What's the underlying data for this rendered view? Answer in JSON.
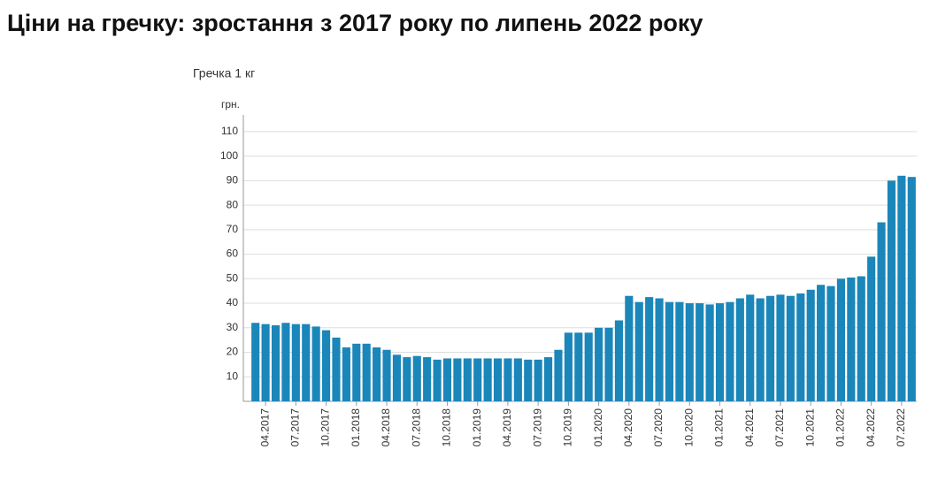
{
  "chart_data": {
    "type": "bar",
    "title": "Ціни на гречку: зростання з 2017 року по липень 2022 року",
    "subtitle": "Гречка 1 кг",
    "y_label": "грн.",
    "categories": [
      null,
      "04.2017",
      null,
      null,
      "07.2017",
      null,
      null,
      "10.2017",
      null,
      null,
      "01.2018",
      null,
      null,
      "04.2018",
      null,
      null,
      "07.2018",
      null,
      null,
      "10.2018",
      null,
      null,
      "01.2019",
      null,
      null,
      "04.2019",
      null,
      null,
      "07.2019",
      null,
      null,
      "10.2019",
      null,
      null,
      "01.2020",
      null,
      null,
      "04.2020",
      null,
      null,
      "07.2020",
      null,
      null,
      "10.2020",
      null,
      null,
      "01.2021",
      null,
      null,
      "04.2021",
      null,
      null,
      "07.2021",
      null,
      null,
      "10.2021",
      null,
      null,
      "01.2022",
      null,
      null,
      "04.2022",
      null,
      null,
      "07.2022",
      null
    ],
    "values": [
      32,
      31.5,
      31,
      32,
      31.5,
      31.5,
      30.5,
      29,
      26,
      22,
      23.5,
      23.5,
      22,
      21,
      19,
      18,
      18.5,
      18,
      17,
      17.5,
      17.5,
      17.5,
      17.5,
      17.5,
      17.5,
      17.5,
      17.5,
      17,
      17,
      18,
      21,
      28,
      28,
      28,
      30,
      30,
      33,
      43,
      40.5,
      42.5,
      42,
      40.5,
      40.5,
      40,
      40,
      39.5,
      40,
      40.5,
      42,
      43.5,
      42,
      43,
      43.5,
      43,
      44,
      45.5,
      47.5,
      47,
      50,
      50.5,
      51,
      59,
      73,
      90,
      92,
      91.5
    ],
    "color": "#1b86b9",
    "ylim": [
      0,
      115
    ],
    "yticks": [
      10,
      20,
      30,
      40,
      50,
      60,
      70,
      80,
      90,
      100,
      110
    ],
    "grid": true
  }
}
